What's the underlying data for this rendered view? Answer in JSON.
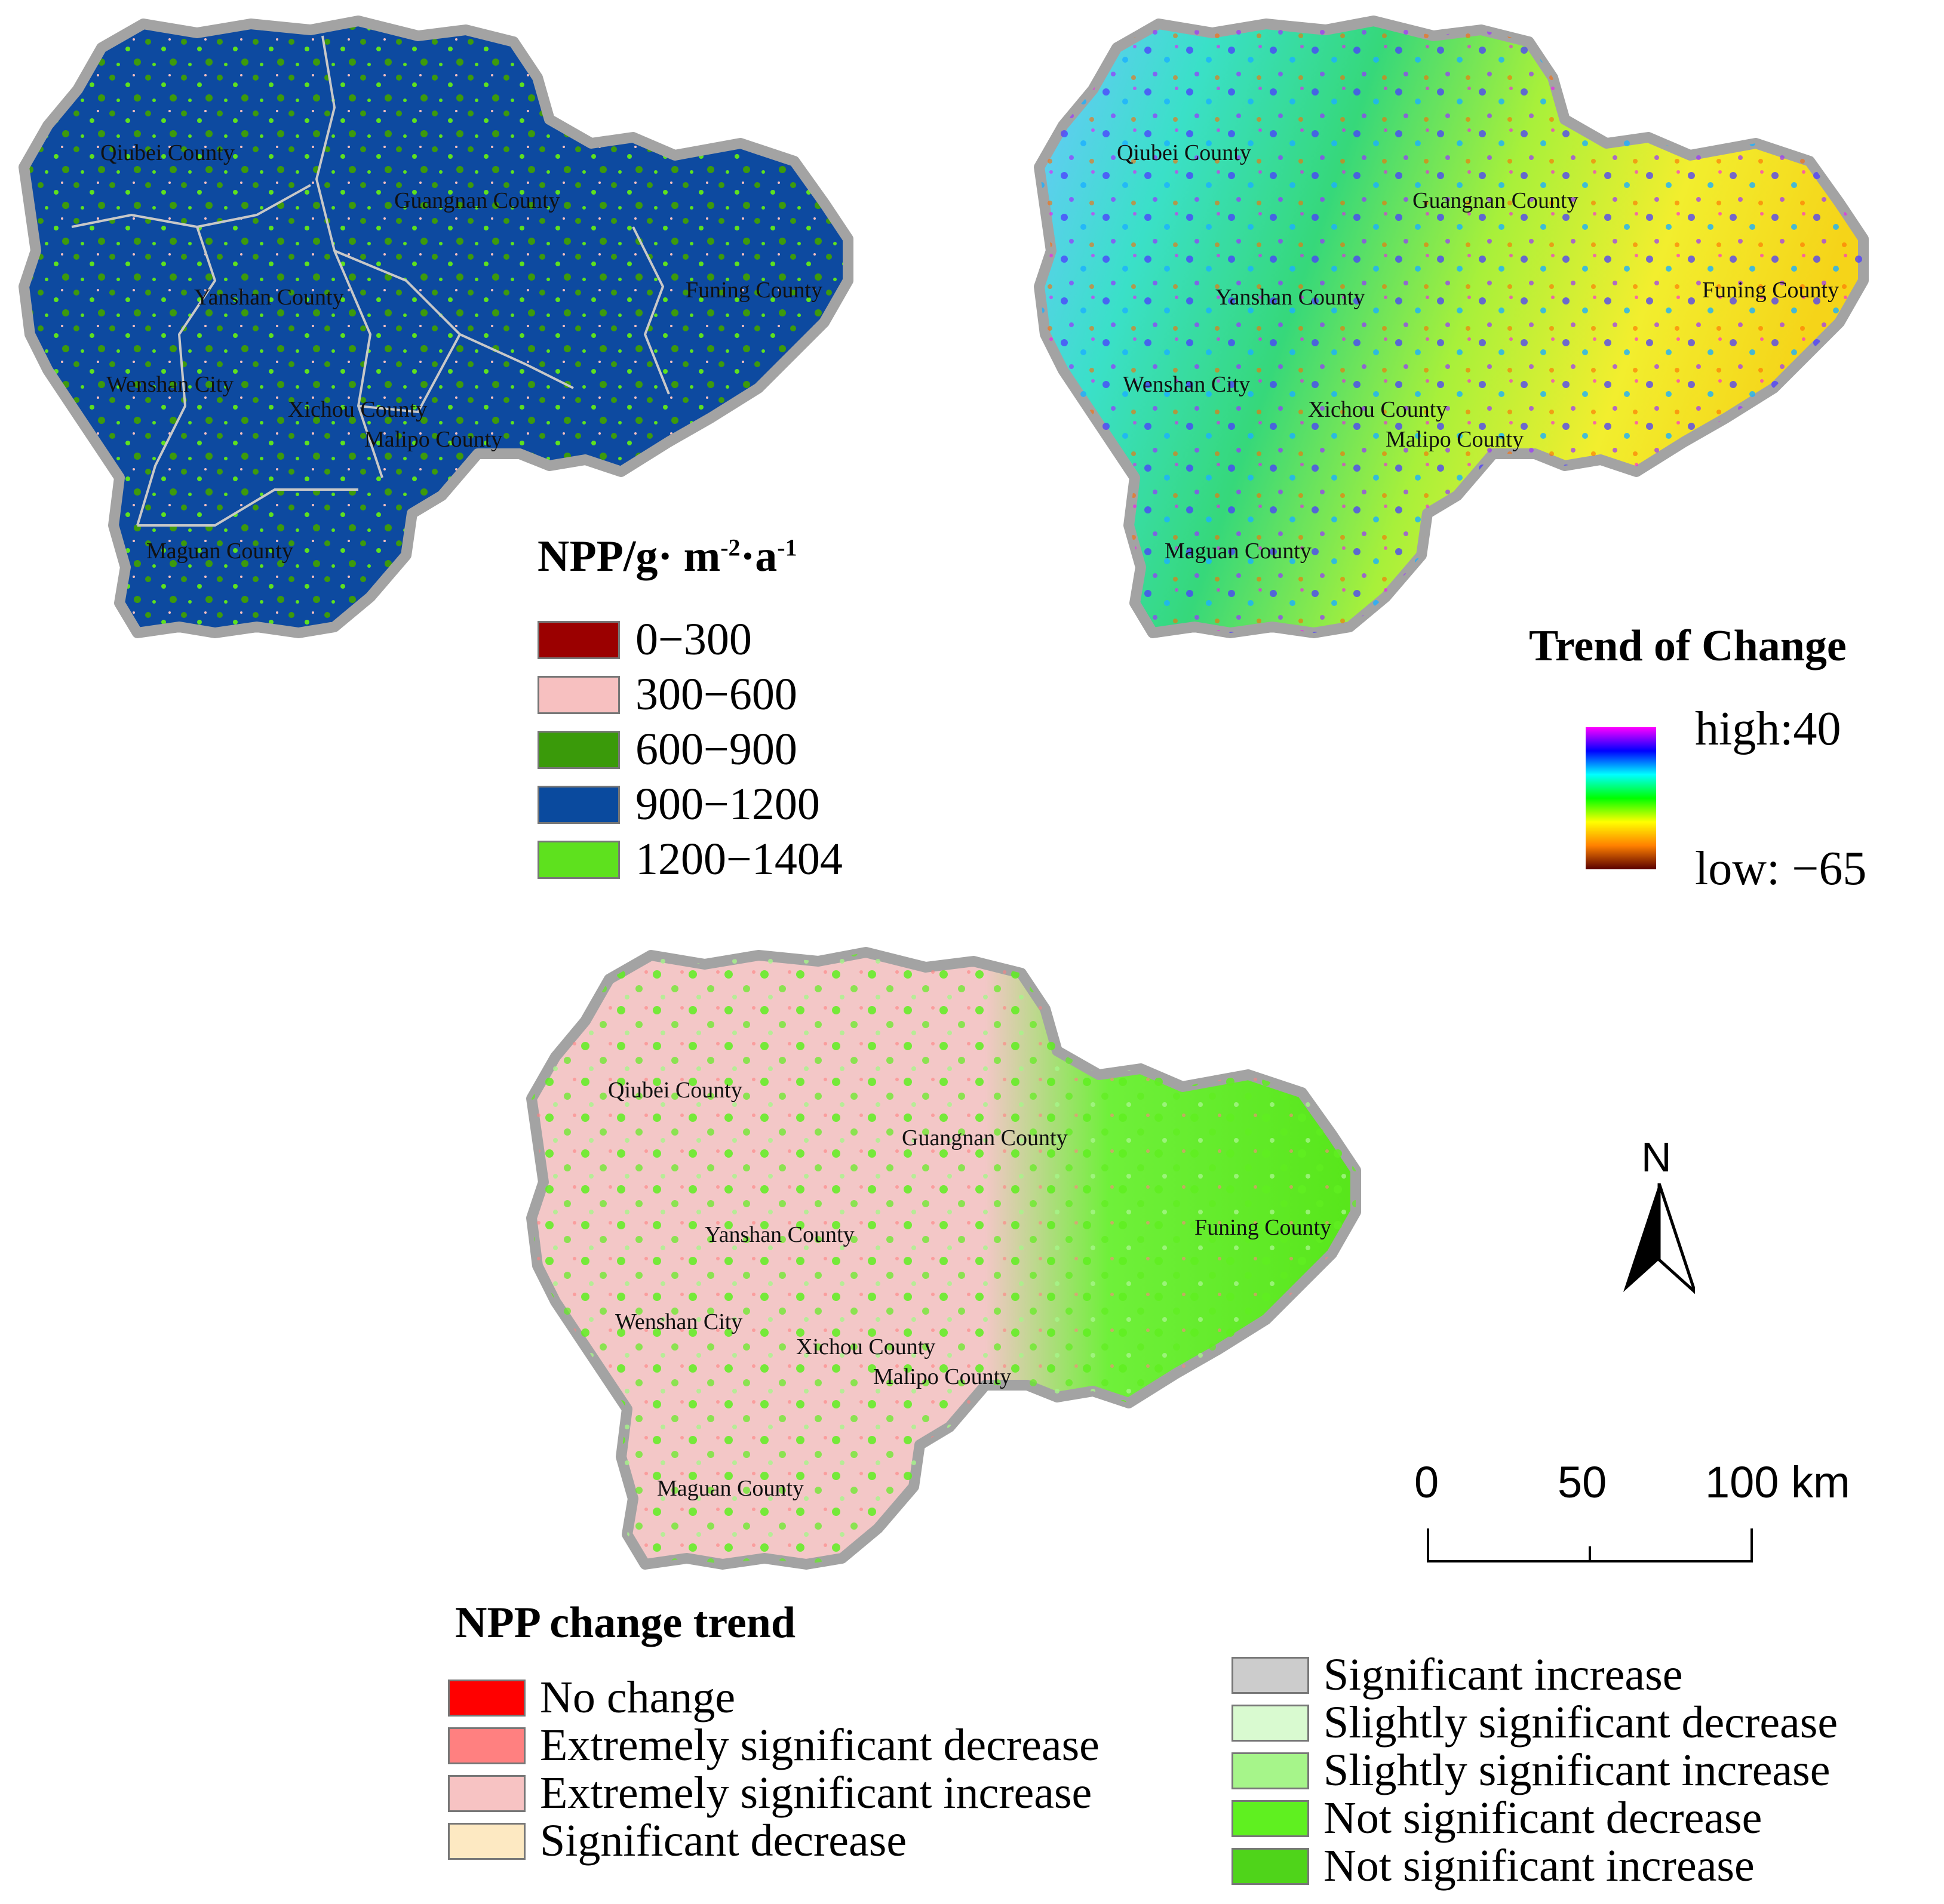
{
  "maps": [
    {
      "id": "npp",
      "county_labels": [
        "Qiubei County",
        "Guangnan County",
        "Funing County",
        "Yanshan County",
        "Wenshan City",
        "Xichou County",
        "Malipo County",
        "Maguan County"
      ]
    },
    {
      "id": "trend",
      "county_labels": [
        "Qiubei County",
        "Guangnan County",
        "Funing County",
        "Yanshan County",
        "Wenshan City",
        "Xichou County",
        "Malipo County",
        "Maguan County"
      ]
    },
    {
      "id": "change",
      "county_labels": [
        "Qiubei County",
        "Guangnan County",
        "Yanshan County",
        "Funing County",
        "Wenshan City",
        "Xichou County",
        "Malipo County",
        "Maguan County"
      ]
    }
  ],
  "npp_legend": {
    "title_main": "NPP/g· m",
    "title_exp1": "-2",
    "title_mid": "·a",
    "title_exp2": "-1",
    "items": [
      {
        "label": "0−300",
        "color": "#9b0000"
      },
      {
        "label": "300−600",
        "color": "#f7c0c0"
      },
      {
        "label": "600−900",
        "color": "#3a9a0a"
      },
      {
        "label": "900−1200",
        "color": "#0a4a9e"
      },
      {
        "label": "1200−1404",
        "color": "#5ee11e"
      }
    ]
  },
  "trend_legend": {
    "title": "Trend of Change",
    "high_label": "high:40",
    "low_label": "low: −65",
    "gradient_colors": [
      "#ff00ff",
      "#0000ff",
      "#00ffff",
      "#00ff00",
      "#ffff00",
      "#ff8000",
      "#5a0000"
    ]
  },
  "change_legend": {
    "title": "NPP change trend",
    "left_items": [
      {
        "label": "No change",
        "color": "#ff0000"
      },
      {
        "label": "Extremely significant decrease",
        "color": "#ff8080"
      },
      {
        "label": "Extremely significant increase",
        "color": "#f7c3c3"
      },
      {
        "label": "Significant decrease",
        "color": "#fde9c2"
      }
    ],
    "right_items": [
      {
        "label": "Significant increase",
        "color": "#cccccc"
      },
      {
        "label": "Slightly significant decrease",
        "color": "#d9fad0"
      },
      {
        "label": "Slightly significant increase",
        "color": "#a6f58a"
      },
      {
        "label": "Not significant decrease",
        "color": "#5ff020"
      },
      {
        "label": "Not significant increase",
        "color": "#4fd41a"
      }
    ]
  },
  "north_arrow": {
    "label": "N"
  },
  "scale_bar": {
    "labels": [
      "0",
      "50",
      "100 km"
    ]
  },
  "colors": {
    "region_border": "#a3a3a3",
    "county_boundary": "#c8c8c8"
  }
}
